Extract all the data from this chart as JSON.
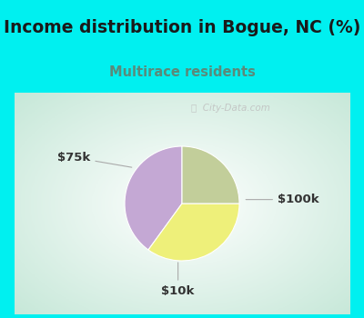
{
  "title": "Income distribution in Bogue, NC (%)",
  "subtitle": "Multirace residents",
  "slices": [
    {
      "label": "$100k",
      "value": 40,
      "color": "#c4a8d4"
    },
    {
      "label": "$75k",
      "value": 35,
      "color": "#eef07a"
    },
    {
      "label": "$10k",
      "value": 25,
      "color": "#c2ce9a"
    }
  ],
  "start_angle": 90,
  "title_fontsize": 13.5,
  "subtitle_fontsize": 10.5,
  "label_fontsize": 9.5,
  "cyan_color": "#00f0f0",
  "chart_bg": "#e0f0ea",
  "watermark": "City-Data.com",
  "label_color": "#333333",
  "subtitle_color": "#5a8a7a"
}
